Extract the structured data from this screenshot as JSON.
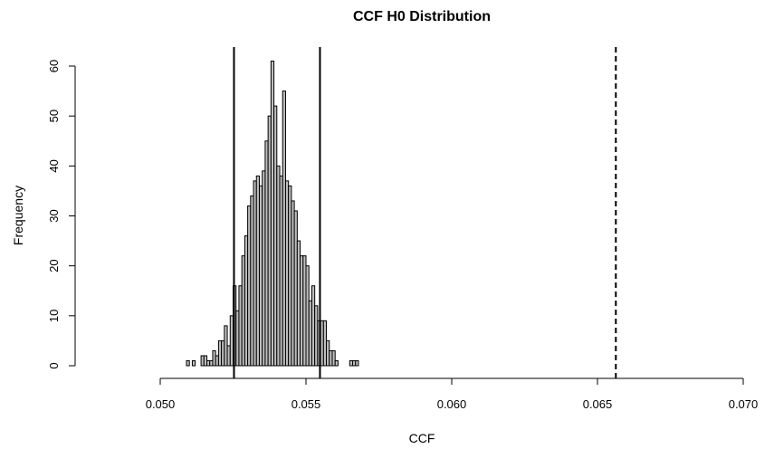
{
  "chart_data": {
    "type": "bar",
    "title": "CCF H0 Distribution",
    "xlabel": "CCF",
    "ylabel": "Frequency",
    "xlim": [
      0.05,
      0.07
    ],
    "ylim": [
      0,
      60
    ],
    "x_ticks": [
      "0.050",
      "0.055",
      "0.060",
      "0.065",
      "0.070"
    ],
    "y_ticks": [
      "0",
      "10",
      "20",
      "30",
      "40",
      "50",
      "60"
    ],
    "grid": false,
    "bin_width": 0.0001,
    "bins": [
      {
        "x0": 0.0509,
        "count": 1
      },
      {
        "x0": 0.051,
        "count": 0
      },
      {
        "x0": 0.0511,
        "count": 1
      },
      {
        "x0": 0.0512,
        "count": 0
      },
      {
        "x0": 0.0513,
        "count": 0
      },
      {
        "x0": 0.0514,
        "count": 2
      },
      {
        "x0": 0.0515,
        "count": 2
      },
      {
        "x0": 0.0516,
        "count": 1
      },
      {
        "x0": 0.0517,
        "count": 1
      },
      {
        "x0": 0.0518,
        "count": 3
      },
      {
        "x0": 0.0519,
        "count": 2
      },
      {
        "x0": 0.052,
        "count": 5
      },
      {
        "x0": 0.0521,
        "count": 5
      },
      {
        "x0": 0.0522,
        "count": 8
      },
      {
        "x0": 0.0523,
        "count": 4
      },
      {
        "x0": 0.0524,
        "count": 10
      },
      {
        "x0": 0.0525,
        "count": 16
      },
      {
        "x0": 0.0526,
        "count": 11
      },
      {
        "x0": 0.0527,
        "count": 16
      },
      {
        "x0": 0.0528,
        "count": 22
      },
      {
        "x0": 0.0529,
        "count": 26
      },
      {
        "x0": 0.053,
        "count": 32
      },
      {
        "x0": 0.0531,
        "count": 34
      },
      {
        "x0": 0.0532,
        "count": 37
      },
      {
        "x0": 0.0533,
        "count": 38
      },
      {
        "x0": 0.0534,
        "count": 36
      },
      {
        "x0": 0.0535,
        "count": 39
      },
      {
        "x0": 0.0536,
        "count": 45
      },
      {
        "x0": 0.0537,
        "count": 50
      },
      {
        "x0": 0.0538,
        "count": 61
      },
      {
        "x0": 0.0539,
        "count": 52
      },
      {
        "x0": 0.054,
        "count": 40
      },
      {
        "x0": 0.0541,
        "count": 38
      },
      {
        "x0": 0.0542,
        "count": 55
      },
      {
        "x0": 0.0543,
        "count": 37
      },
      {
        "x0": 0.0544,
        "count": 36
      },
      {
        "x0": 0.0545,
        "count": 33
      },
      {
        "x0": 0.0546,
        "count": 31
      },
      {
        "x0": 0.0547,
        "count": 25
      },
      {
        "x0": 0.0548,
        "count": 22
      },
      {
        "x0": 0.0549,
        "count": 22
      },
      {
        "x0": 0.055,
        "count": 20
      },
      {
        "x0": 0.0551,
        "count": 13
      },
      {
        "x0": 0.0552,
        "count": 16
      },
      {
        "x0": 0.0553,
        "count": 12
      },
      {
        "x0": 0.0554,
        "count": 9
      },
      {
        "x0": 0.0555,
        "count": 9
      },
      {
        "x0": 0.0556,
        "count": 9
      },
      {
        "x0": 0.0557,
        "count": 5
      },
      {
        "x0": 0.0558,
        "count": 3
      },
      {
        "x0": 0.0559,
        "count": 3
      },
      {
        "x0": 0.056,
        "count": 1
      },
      {
        "x0": 0.0561,
        "count": 0
      },
      {
        "x0": 0.0562,
        "count": 0
      },
      {
        "x0": 0.0563,
        "count": 0
      },
      {
        "x0": 0.0564,
        "count": 0
      },
      {
        "x0": 0.0565,
        "count": 1
      },
      {
        "x0": 0.0566,
        "count": 1
      },
      {
        "x0": 0.0567,
        "count": 1
      }
    ],
    "vlines": [
      {
        "x": 0.05253,
        "style": "solid"
      },
      {
        "x": 0.05548,
        "style": "solid"
      },
      {
        "x": 0.06563,
        "style": "dashed"
      }
    ]
  }
}
